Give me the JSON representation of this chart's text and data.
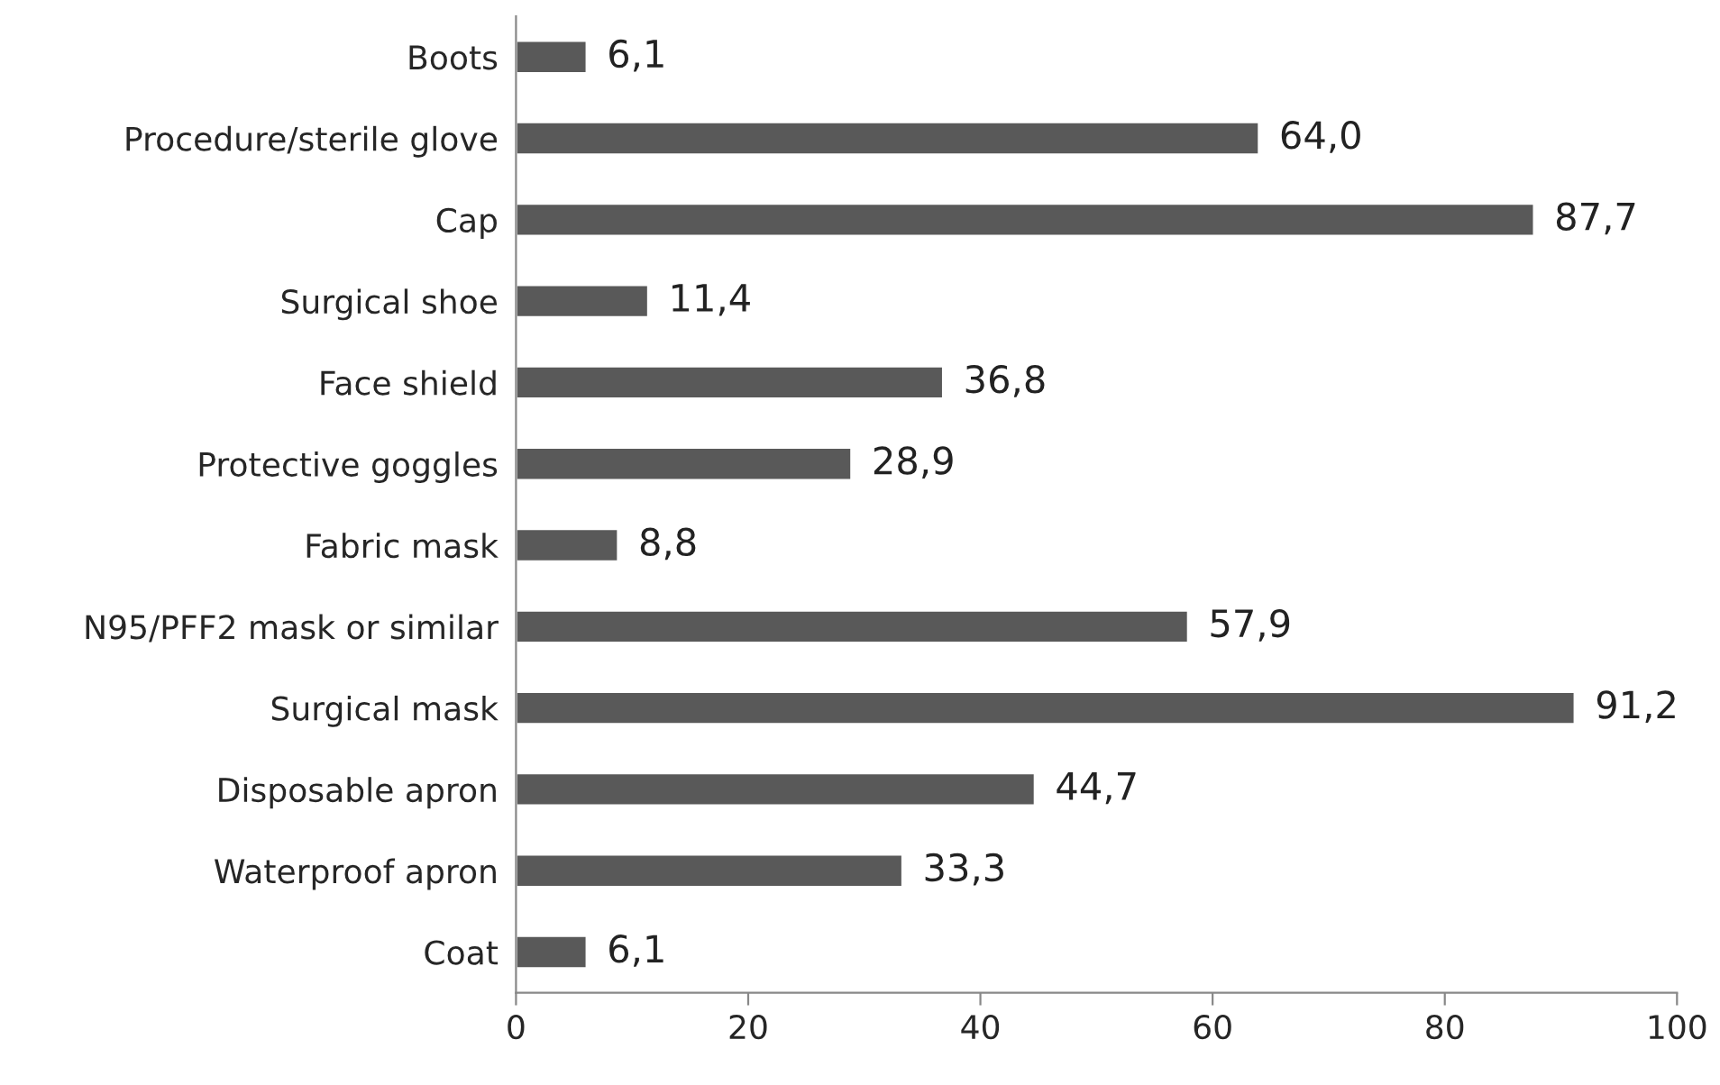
{
  "chart_data": {
    "type": "bar",
    "orientation": "horizontal",
    "categories": [
      "Boots",
      "Procedure/sterile glove",
      "Cap",
      "Surgical shoe",
      "Face shield",
      "Protective goggles",
      "Fabric mask",
      "N95/PFF2 mask or similar",
      "Surgical mask",
      "Disposable apron",
      "Waterproof apron",
      "Coat"
    ],
    "values": [
      6.1,
      64.0,
      87.7,
      11.4,
      36.8,
      28.9,
      8.8,
      57.9,
      91.2,
      44.7,
      33.3,
      6.1
    ],
    "value_labels": [
      "6,1",
      "64,0",
      "87,7",
      "11,4",
      "36,8",
      "28,9",
      "8,8",
      "57,9",
      "91,2",
      "44,7",
      "33,3",
      "6,1"
    ],
    "color": "#595959",
    "xlim": [
      0,
      100
    ],
    "xticks": [
      0,
      20,
      40,
      60,
      80,
      100
    ],
    "grid": false,
    "legend": false
  }
}
